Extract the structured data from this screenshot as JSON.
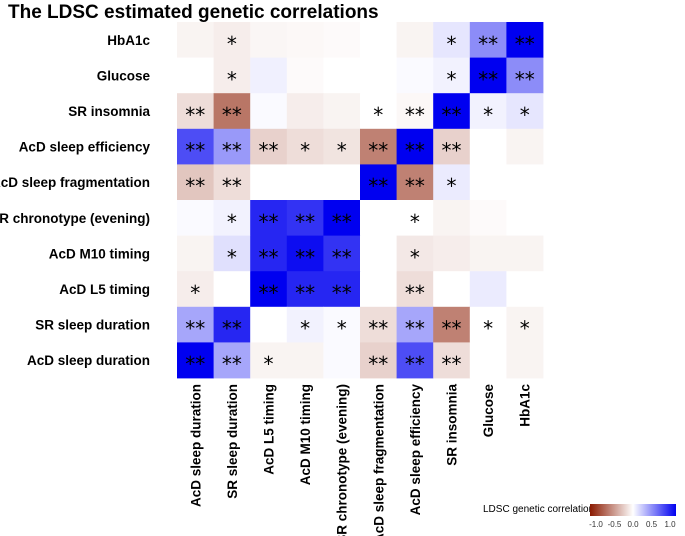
{
  "title": "The LDSC estimated genetic correlations",
  "chart_data": {
    "type": "heatmap",
    "title": "The LDSC estimated genetic correlations",
    "rows": [
      "HbA1c",
      "Glucose",
      "SR insomnia",
      "AcD sleep efficiency",
      "AcD sleep fragmentation",
      "SR chronotype (evening)",
      "AcD M10 timing",
      "AcD L5 timing",
      "SR sleep duration",
      "AcD sleep duration"
    ],
    "columns": [
      "AcD sleep duration",
      "SR sleep duration",
      "AcD L5 timing",
      "AcD M10 timing",
      "SR chronotype (evening)",
      "AcD sleep fragmentation",
      "AcD sleep efficiency",
      "SR insomnia",
      "Glucose",
      "HbA1c"
    ],
    "values": [
      [
        -0.05,
        -0.08,
        -0.04,
        -0.03,
        -0.02,
        0.0,
        -0.05,
        0.1,
        0.45,
        1.0
      ],
      [
        0.0,
        -0.08,
        0.06,
        -0.02,
        0.0,
        0.0,
        0.02,
        0.05,
        1.0,
        0.45
      ],
      [
        -0.15,
        -0.6,
        0.02,
        -0.08,
        -0.05,
        0.0,
        -0.03,
        1.0,
        0.05,
        0.1
      ],
      [
        0.7,
        0.4,
        -0.2,
        -0.15,
        -0.12,
        -0.55,
        1.0,
        -0.2,
        0.0,
        -0.05
      ],
      [
        -0.25,
        -0.15,
        0.0,
        0.0,
        0.0,
        1.0,
        -0.55,
        0.08,
        0.0,
        0.0
      ],
      [
        0.02,
        0.05,
        0.85,
        0.8,
        1.0,
        0.0,
        0.0,
        -0.05,
        -0.02,
        0.0
      ],
      [
        -0.05,
        0.12,
        0.85,
        0.95,
        0.8,
        0.0,
        -0.1,
        -0.08,
        -0.05,
        -0.05
      ],
      [
        -0.08,
        0.0,
        1.0,
        0.85,
        0.85,
        0.0,
        -0.15,
        0.0,
        0.08,
        0.0
      ],
      [
        0.35,
        0.85,
        0.0,
        0.05,
        0.02,
        -0.15,
        0.35,
        -0.55,
        0.0,
        -0.05
      ],
      [
        1.0,
        0.35,
        -0.05,
        -0.05,
        0.02,
        -0.2,
        0.7,
        -0.15,
        0.0,
        -0.05
      ]
    ],
    "significance": [
      [
        "",
        "*",
        "",
        "",
        "",
        "",
        "",
        "*",
        "**",
        "**"
      ],
      [
        "",
        "*",
        "",
        "",
        "",
        "",
        "",
        "*",
        "**",
        "**"
      ],
      [
        "**",
        "**",
        "",
        "",
        "",
        "*",
        "**",
        "**",
        "*",
        "*"
      ],
      [
        "**",
        "**",
        "**",
        "*",
        "*",
        "**",
        "**",
        "**",
        "",
        ""
      ],
      [
        "**",
        "**",
        "",
        "",
        "",
        "**",
        "**",
        "*",
        "",
        ""
      ],
      [
        "",
        "*",
        "**",
        "**",
        "**",
        "",
        "*",
        "",
        "",
        ""
      ],
      [
        "",
        "*",
        "**",
        "**",
        "**",
        "",
        "*",
        "",
        "",
        ""
      ],
      [
        "*",
        "",
        "**",
        "**",
        "**",
        "",
        "**",
        "",
        "",
        ""
      ],
      [
        "**",
        "**",
        "",
        "*",
        "*",
        "**",
        "**",
        "**",
        "*",
        "*"
      ],
      [
        "**",
        "**",
        "*",
        "",
        "",
        "**",
        "**",
        "**",
        "",
        ""
      ]
    ],
    "color_scale": {
      "low": "#8b1a00",
      "mid": "#ffffff",
      "high": "#0000f0",
      "range": [
        -1,
        1
      ]
    },
    "legend": {
      "title": "LDSC genetic correlation",
      "ticks": [
        "-1.0",
        "-0.5",
        "0.0",
        "0.5",
        "1.0"
      ],
      "placement": "bottom-right"
    }
  }
}
